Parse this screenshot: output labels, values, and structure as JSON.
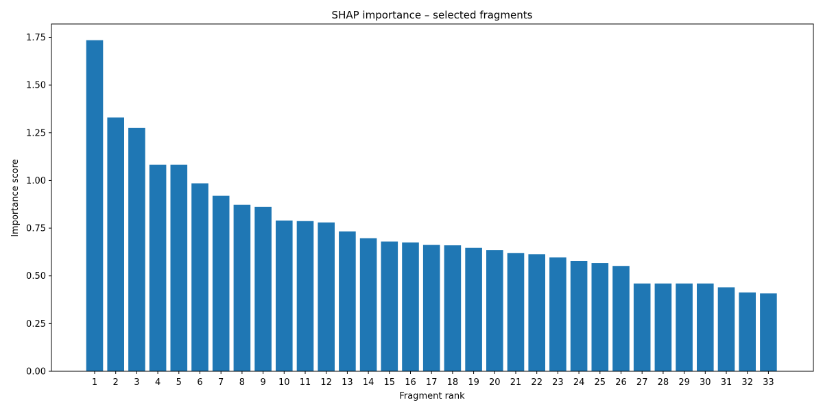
{
  "chart_data": {
    "type": "bar",
    "title": "SHAP importance – selected fragments",
    "xlabel": "Fragment rank",
    "ylabel": "Importance score",
    "categories": [
      "1",
      "2",
      "3",
      "4",
      "5",
      "6",
      "7",
      "8",
      "9",
      "10",
      "11",
      "12",
      "13",
      "14",
      "15",
      "16",
      "17",
      "18",
      "19",
      "20",
      "21",
      "22",
      "23",
      "24",
      "25",
      "26",
      "27",
      "28",
      "29",
      "30",
      "31",
      "32",
      "33"
    ],
    "values": [
      1.735,
      1.33,
      1.275,
      1.082,
      1.082,
      0.985,
      0.92,
      0.873,
      0.862,
      0.79,
      0.787,
      0.78,
      0.733,
      0.697,
      0.68,
      0.675,
      0.662,
      0.66,
      0.647,
      0.635,
      0.62,
      0.613,
      0.597,
      0.578,
      0.567,
      0.552,
      0.46,
      0.46,
      0.46,
      0.46,
      0.44,
      0.413,
      0.408
    ],
    "ylim": [
      0,
      1.82
    ],
    "yticks": [
      0.0,
      0.25,
      0.5,
      0.75,
      1.0,
      1.25,
      1.5,
      1.75
    ],
    "ytick_labels": [
      "0.00",
      "0.25",
      "0.50",
      "0.75",
      "1.00",
      "1.25",
      "1.50",
      "1.75"
    ],
    "bar_color": "#1f77b4",
    "grid": false,
    "legend": "none"
  }
}
